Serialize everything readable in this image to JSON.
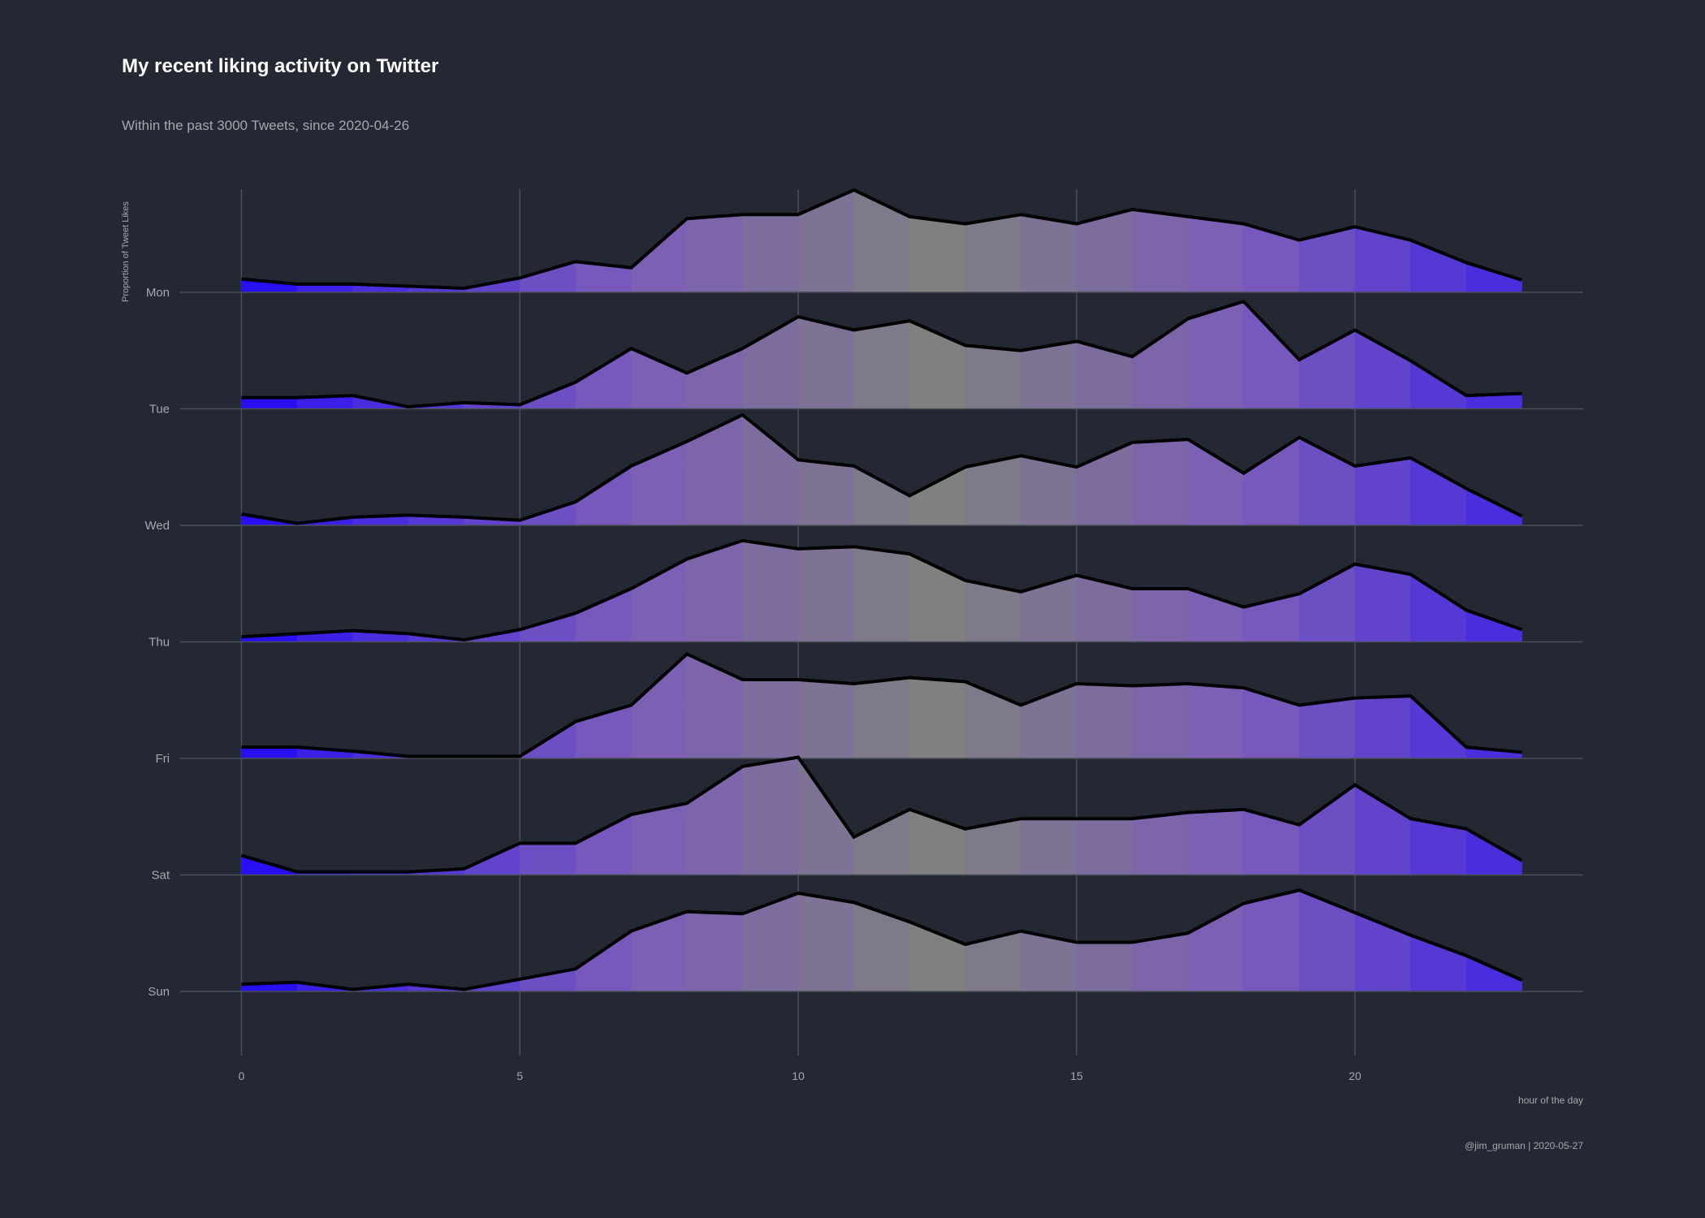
{
  "title": "My recent liking activity on Twitter",
  "subtitle": "Within the past 3000 Tweets, since 2020-04-26",
  "caption": "@jim_gruman | 2020-05-27",
  "colors": {
    "background": "#232832",
    "grid": "#4a4f58",
    "text": "#a3a8b0",
    "line": "#000000",
    "fill_night": "#1a00ff",
    "fill_midday": "#808080"
  },
  "chart_data": {
    "type": "area",
    "style": "ridgeline",
    "xlabel": "hour of the day",
    "ylabel": "Proportion of Tweet Likes",
    "x_ticks": [
      0,
      5,
      10,
      15,
      20
    ],
    "xlim": [
      -1.1,
      24.1
    ],
    "x": [
      0,
      1,
      2,
      3,
      4,
      5,
      6,
      7,
      8,
      9,
      10,
      11,
      12,
      13,
      14,
      15,
      16,
      17,
      18,
      19,
      20,
      21,
      22,
      23
    ],
    "fill_gradient": "hour-of-day color: blue at night, grey around midday",
    "legend": "none",
    "series": [
      {
        "name": "Mon",
        "values": [
          0.13,
          0.08,
          0.08,
          0.06,
          0.04,
          0.14,
          0.3,
          0.24,
          0.72,
          0.76,
          0.76,
          1.0,
          0.74,
          0.67,
          0.76,
          0.67,
          0.81,
          0.74,
          0.67,
          0.51,
          0.64,
          0.51,
          0.29,
          0.12
        ]
      },
      {
        "name": "Tue",
        "values": [
          0.11,
          0.11,
          0.13,
          0.02,
          0.06,
          0.04,
          0.26,
          0.59,
          0.35,
          0.59,
          0.9,
          0.77,
          0.86,
          0.62,
          0.57,
          0.66,
          0.51,
          0.88,
          1.05,
          0.48,
          0.77,
          0.47,
          0.13,
          0.15
        ]
      },
      {
        "name": "Wed",
        "values": [
          0.11,
          0.02,
          0.08,
          0.1,
          0.08,
          0.05,
          0.23,
          0.58,
          0.82,
          1.08,
          0.64,
          0.58,
          0.29,
          0.57,
          0.68,
          0.57,
          0.81,
          0.84,
          0.51,
          0.86,
          0.58,
          0.66,
          0.36,
          0.09
        ]
      },
      {
        "name": "Thu",
        "values": [
          0.05,
          0.08,
          0.11,
          0.08,
          0.02,
          0.12,
          0.28,
          0.52,
          0.81,
          0.99,
          0.91,
          0.93,
          0.86,
          0.6,
          0.49,
          0.65,
          0.52,
          0.52,
          0.34,
          0.47,
          0.76,
          0.66,
          0.31,
          0.12
        ]
      },
      {
        "name": "Fri",
        "values": [
          0.11,
          0.11,
          0.07,
          0.02,
          0.02,
          0.02,
          0.36,
          0.52,
          1.02,
          0.77,
          0.77,
          0.73,
          0.79,
          0.75,
          0.52,
          0.73,
          0.71,
          0.73,
          0.69,
          0.52,
          0.59,
          0.61,
          0.11,
          0.06
        ]
      },
      {
        "name": "Sat",
        "values": [
          0.19,
          0.03,
          0.03,
          0.03,
          0.06,
          0.31,
          0.31,
          0.59,
          0.7,
          1.06,
          1.15,
          0.37,
          0.64,
          0.45,
          0.55,
          0.55,
          0.55,
          0.61,
          0.64,
          0.49,
          0.88,
          0.55,
          0.45,
          0.14
        ]
      },
      {
        "name": "Sun",
        "values": [
          0.07,
          0.09,
          0.02,
          0.07,
          0.02,
          0.12,
          0.22,
          0.59,
          0.78,
          0.76,
          0.96,
          0.87,
          0.68,
          0.46,
          0.59,
          0.48,
          0.48,
          0.57,
          0.86,
          0.99,
          0.77,
          0.55,
          0.35,
          0.11
        ]
      }
    ]
  }
}
